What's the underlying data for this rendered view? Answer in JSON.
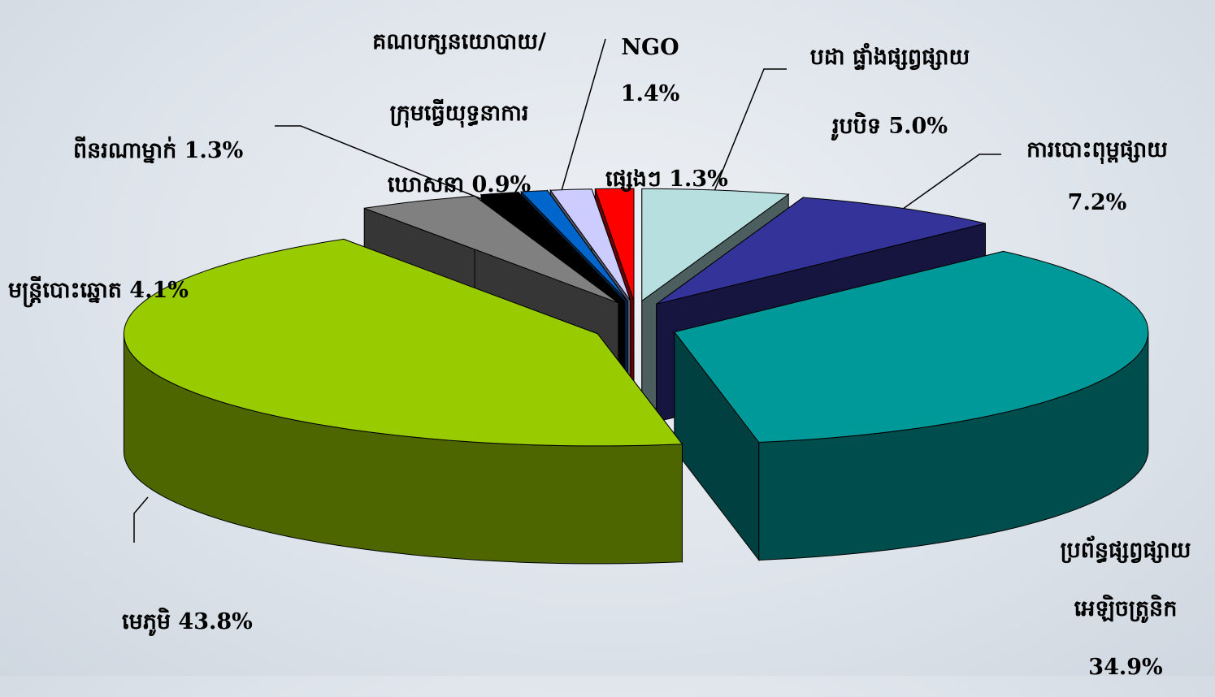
{
  "chart_data": {
    "type": "pie3d",
    "categories": [
      "បដា ផ្ទាំងផ្សព្វផ្សាយ\nរូបបិទ",
      "ការបោះពុម្ពផ្សាយ",
      "ប្រព័ន្ធផ្សព្វផ្សាយ\nអេឡិចត្រូនិក",
      "មេភូមិ",
      "មន្ត្រីបោះឆ្នោត",
      "ពីនរណាម្នាក់",
      "គណបក្សនយោបាយ/\nក្រុមធ្វើយុទ្ធនាការ\nឃោសនា",
      "NGO",
      "ផ្សេងៗ"
    ],
    "values": [
      5.0,
      7.2,
      34.9,
      43.8,
      4.1,
      1.3,
      0.9,
      1.4,
      1.3
    ],
    "value_labels": [
      "5.0%",
      "7.2%",
      "34.9%",
      "43.8%",
      "4.1%",
      "1.3%",
      "0.9%",
      "1.4%",
      "1.3%"
    ],
    "colors": [
      "#b8dfe0",
      "#333399",
      "#009999",
      "#99cc00",
      "#808080",
      "#000000",
      "#0066cc",
      "#ccccff",
      "#ff0000"
    ]
  }
}
